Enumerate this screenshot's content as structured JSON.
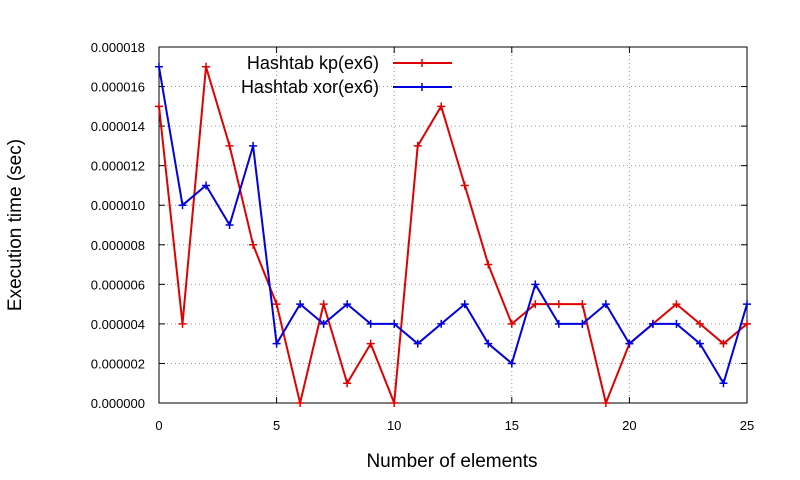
{
  "chart_data": {
    "type": "line",
    "title": "",
    "xlabel": "Number of elements",
    "ylabel": "Execution time (sec)",
    "xlim": [
      0,
      25
    ],
    "ylim": [
      0,
      1.8e-05
    ],
    "x_ticks": [
      "0",
      "5",
      "10",
      "15",
      "20",
      "25"
    ],
    "y_ticks": [
      "0.000000",
      "0.000002",
      "0.000004",
      "0.000006",
      "0.000008",
      "0.000010",
      "0.000012",
      "0.000014",
      "0.000016",
      "0.000018"
    ],
    "grid": true,
    "legend_position": "top-center",
    "x": [
      0,
      1,
      2,
      3,
      4,
      5,
      6,
      7,
      8,
      9,
      10,
      11,
      12,
      13,
      14,
      15,
      16,
      17,
      18,
      19,
      20,
      21,
      22,
      23,
      24,
      25
    ],
    "series": [
      {
        "name": "Hashtab kp(ex6)",
        "color": "#e00000",
        "values": [
          1.5e-05,
          4e-06,
          1.7e-05,
          1.3e-05,
          8e-06,
          5e-06,
          0.0,
          5e-06,
          1e-06,
          3e-06,
          0.0,
          1.3e-05,
          1.5e-05,
          1.1e-05,
          7e-06,
          4e-06,
          5e-06,
          5e-06,
          5e-06,
          0.0,
          3e-06,
          4e-06,
          5e-06,
          4e-06,
          3e-06,
          4e-06
        ]
      },
      {
        "name": "Hashtab xor(ex6)",
        "color": "#0000e0",
        "values": [
          1.7e-05,
          1e-05,
          1.1e-05,
          9e-06,
          1.3e-05,
          3e-06,
          5e-06,
          4e-06,
          5e-06,
          4e-06,
          4e-06,
          3e-06,
          4e-06,
          5e-06,
          3e-06,
          2e-06,
          6e-06,
          4e-06,
          4e-06,
          5e-06,
          3e-06,
          4e-06,
          4e-06,
          3e-06,
          1e-06,
          5e-06
        ]
      }
    ]
  }
}
